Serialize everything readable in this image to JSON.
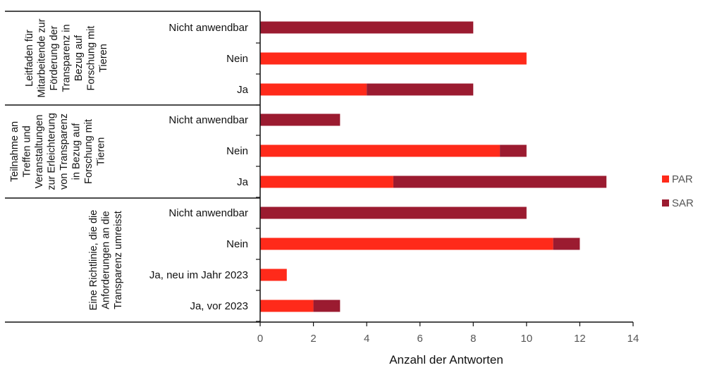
{
  "chart_data": {
    "type": "bar",
    "orientation": "horizontal",
    "stacked": true,
    "xlabel": "Anzahl der Antworten",
    "xlim": [
      0,
      14
    ],
    "xticks": [
      0,
      2,
      4,
      6,
      8,
      10,
      12,
      14
    ],
    "grid": false,
    "legend_position": "right",
    "colors": {
      "PAR": "#ff2a1a",
      "SAR": "#9b1b30"
    },
    "series": [
      {
        "name": "PAR",
        "color": "#ff2a1a"
      },
      {
        "name": "SAR",
        "color": "#9b1b30"
      }
    ],
    "groups": [
      {
        "label_lines": [
          "Leitfaden für",
          "Mitarbeitende zur",
          "Förderung der",
          "Transparenz in",
          "Bezug auf",
          "Forschung mit",
          "Tieren"
        ],
        "categories": [
          {
            "label": "Nicht anwendbar",
            "PAR": 0,
            "SAR": 8
          },
          {
            "label": "Nein",
            "PAR": 10,
            "SAR": 0
          },
          {
            "label": "Ja",
            "PAR": 4,
            "SAR": 4
          }
        ]
      },
      {
        "label_lines": [
          "Teilnahme an",
          "Treffen und",
          "Veranstaltungen",
          "zur Erleichterung",
          "von Transparenz",
          "in Bezug auf",
          "Forschung mit",
          "Tieren"
        ],
        "categories": [
          {
            "label": "Nicht anwendbar",
            "PAR": 0,
            "SAR": 3
          },
          {
            "label": "Nein",
            "PAR": 9,
            "SAR": 1
          },
          {
            "label": "Ja",
            "PAR": 5,
            "SAR": 8
          }
        ]
      },
      {
        "label_lines": [
          "Eine Richtlinie, die die",
          "Anforderungen an die",
          "Transparenz umreisst"
        ],
        "categories": [
          {
            "label": "Nicht anwendbar",
            "PAR": 0,
            "SAR": 10
          },
          {
            "label": "Nein",
            "PAR": 11,
            "SAR": 1
          },
          {
            "label": "Ja, neu im Jahr 2023",
            "PAR": 1,
            "SAR": 0
          },
          {
            "label": "Ja, vor 2023",
            "PAR": 2,
            "SAR": 1
          }
        ]
      }
    ]
  }
}
